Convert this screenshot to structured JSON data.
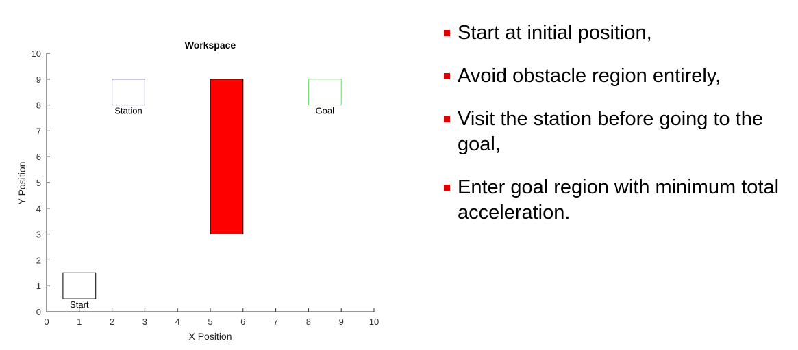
{
  "chart_data": {
    "type": "diagram",
    "title": "Workspace",
    "xlabel": "X Position",
    "ylabel": "Y Position",
    "xlim": [
      0,
      10
    ],
    "ylim": [
      0,
      10
    ],
    "xticks": [
      "0",
      "1",
      "2",
      "3",
      "4",
      "5",
      "6",
      "7",
      "8",
      "9",
      "10"
    ],
    "yticks": [
      "0",
      "1",
      "2",
      "3",
      "4",
      "5",
      "6",
      "7",
      "8",
      "9",
      "10"
    ],
    "regions": [
      {
        "name": "Start",
        "label": "Start",
        "x": [
          0.5,
          1.5
        ],
        "y": [
          0.5,
          1.5
        ],
        "stroke": "#000000",
        "fill": "none"
      },
      {
        "name": "Station",
        "label": "Station",
        "x": [
          2,
          3
        ],
        "y": [
          8,
          9
        ],
        "stroke": "#5555cc",
        "fill": "none"
      },
      {
        "name": "Obstacle",
        "label": "",
        "x": [
          5,
          6
        ],
        "y": [
          3,
          9
        ],
        "stroke": "#000000",
        "fill": "#ff0000"
      },
      {
        "name": "Goal",
        "label": "Goal",
        "x": [
          8,
          9
        ],
        "y": [
          8,
          9
        ],
        "stroke": "#66dd66",
        "fill": "none"
      }
    ]
  },
  "bullets": [
    {
      "text": "Start at initial position,"
    },
    {
      "text": "Avoid obstacle region entirely,"
    },
    {
      "text": "Visit the station before going to the goal,"
    },
    {
      "text": "Enter goal region with minimum total acceleration."
    }
  ],
  "colors": {
    "bullet_marker": "#e00000"
  }
}
